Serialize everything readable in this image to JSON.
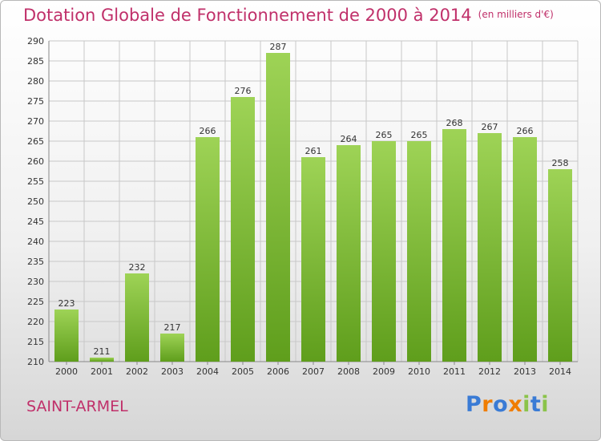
{
  "title": "Dotation Globale de Fonctionnement de 2000 à 2014",
  "subtitle": "(en milliers d'€)",
  "commune": "SAINT-ARMEL",
  "logo": {
    "text": "Proxiti",
    "letter_colors": [
      "#3a7bd5",
      "#f07d00",
      "#3a7bd5",
      "#f07d00",
      "#8bc34a",
      "#3a7bd5",
      "#8bc34a"
    ]
  },
  "colors": {
    "accent": "#c0306a",
    "bar_top": "#9ed356",
    "bar_bottom": "#5f9e1c",
    "grid": "#c8c8c8"
  },
  "chart_data": {
    "type": "bar",
    "title": "Dotation Globale de Fonctionnement de 2000 à 2014",
    "subtitle": "(en milliers d'€)",
    "categories": [
      "2000",
      "2001",
      "2002",
      "2003",
      "2004",
      "2005",
      "2006",
      "2007",
      "2008",
      "2009",
      "2010",
      "2011",
      "2012",
      "2013",
      "2014"
    ],
    "values": [
      223,
      211,
      232,
      217,
      266,
      276,
      287,
      261,
      264,
      265,
      265,
      268,
      267,
      266,
      258
    ],
    "ylim": [
      210,
      290
    ],
    "yticks": [
      210,
      215,
      220,
      225,
      230,
      235,
      240,
      245,
      250,
      255,
      260,
      265,
      270,
      275,
      280,
      285,
      290
    ],
    "grid": true,
    "data_labels": true
  }
}
